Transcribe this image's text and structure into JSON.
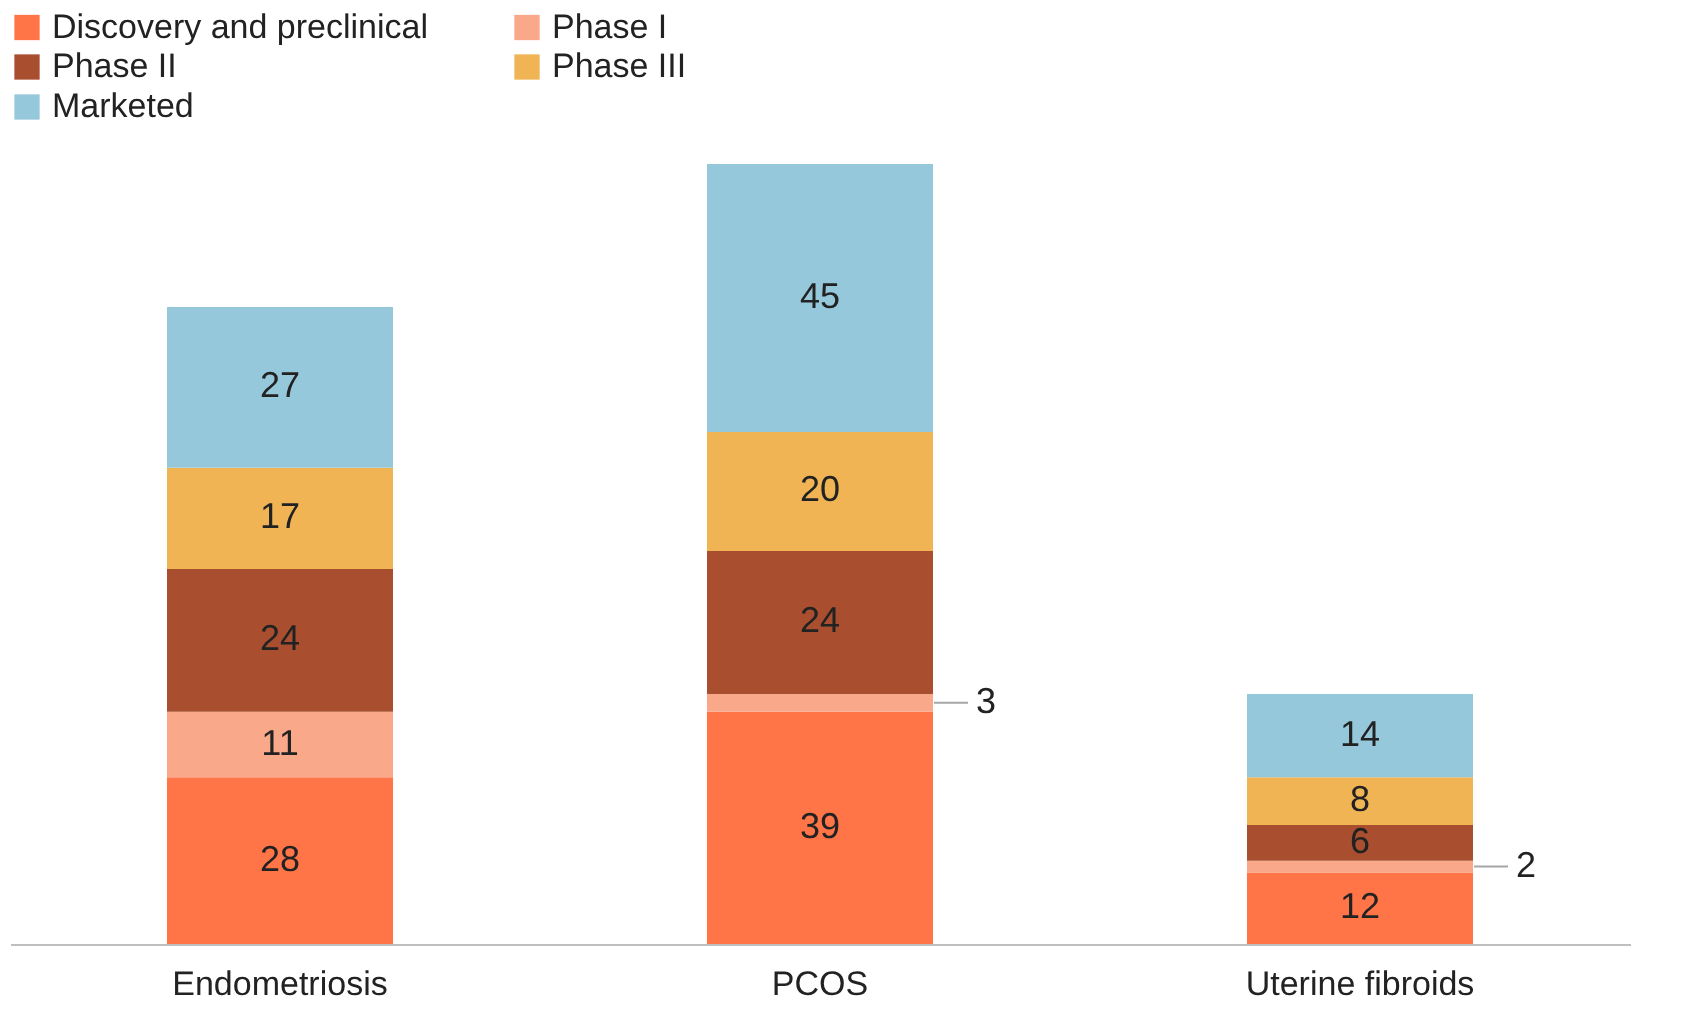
{
  "chart_data": {
    "type": "bar",
    "stacked": true,
    "data_labels": true,
    "tick_labels": "x",
    "legend": "top left",
    "grid": false,
    "categories": [
      "Endometriosis",
      "PCOS",
      "Uterine fibroids"
    ],
    "series": [
      {
        "name": "Discovery and preclinical",
        "color": "#ff7548",
        "values": [
          28,
          39,
          12
        ]
      },
      {
        "name": "Phase I",
        "color": "#f9a98a",
        "values": [
          11,
          3,
          2
        ]
      },
      {
        "name": "Phase II",
        "color": "#a94f30",
        "values": [
          24,
          24,
          6
        ]
      },
      {
        "name": "Phase III",
        "color": "#f0b455",
        "values": [
          17,
          20,
          8
        ]
      },
      {
        "name": "Marketed",
        "color": "#96c8dc",
        "values": [
          27,
          45,
          14
        ]
      }
    ]
  }
}
